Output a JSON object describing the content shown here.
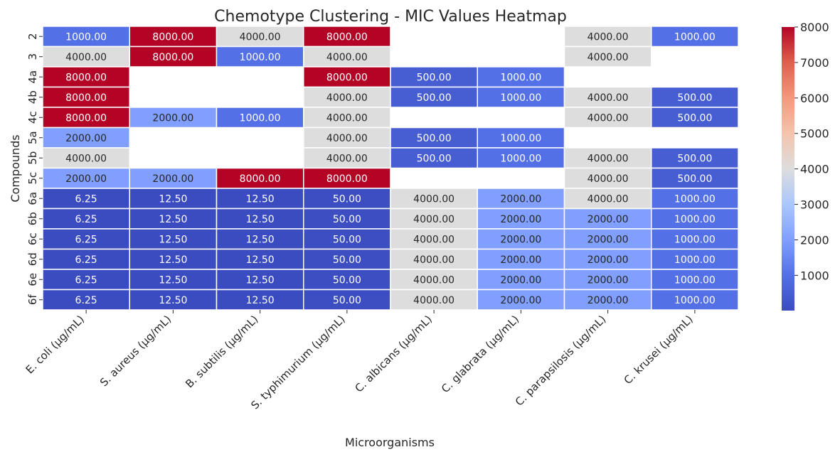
{
  "chart_data": {
    "type": "heatmap",
    "title": "Chemotype Clustering - MIC Values Heatmap",
    "xlabel": "Microorganisms",
    "ylabel": "Compounds",
    "columns": [
      "E. coli (µg/mL)",
      "S. aureus (µg/mL)",
      "B. subtilis (µg/mL)",
      "S. typhimurium (µg/mL)",
      "C. albicans (µg/mL)",
      "C. glabrata (µg/mL)",
      "C. parapsilosis (µg/mL)",
      "C. krusei (µg/mL)"
    ],
    "rows": [
      "2",
      "3",
      "4a",
      "4b",
      "4c",
      "5a",
      "5b",
      "5c",
      "6a",
      "6b",
      "6c",
      "6d",
      "6e",
      "6f"
    ],
    "values": [
      [
        1000,
        8000,
        4000,
        8000,
        null,
        null,
        4000,
        1000
      ],
      [
        4000,
        8000,
        1000,
        4000,
        null,
        null,
        4000,
        null
      ],
      [
        8000,
        null,
        null,
        8000,
        500,
        1000,
        null,
        null
      ],
      [
        8000,
        null,
        null,
        4000,
        500,
        1000,
        4000,
        500
      ],
      [
        8000,
        2000,
        1000,
        4000,
        null,
        null,
        4000,
        500
      ],
      [
        2000,
        null,
        null,
        4000,
        500,
        1000,
        null,
        null
      ],
      [
        4000,
        null,
        null,
        4000,
        500,
        1000,
        4000,
        500
      ],
      [
        2000,
        2000,
        8000,
        8000,
        null,
        null,
        4000,
        500
      ],
      [
        6.25,
        12.5,
        12.5,
        50,
        4000,
        2000,
        4000,
        1000
      ],
      [
        6.25,
        12.5,
        12.5,
        50,
        4000,
        2000,
        2000,
        1000
      ],
      [
        6.25,
        12.5,
        12.5,
        50,
        4000,
        2000,
        2000,
        1000
      ],
      [
        6.25,
        12.5,
        12.5,
        50,
        4000,
        2000,
        2000,
        1000
      ],
      [
        6.25,
        12.5,
        12.5,
        50,
        4000,
        2000,
        2000,
        1000
      ],
      [
        6.25,
        12.5,
        12.5,
        50,
        4000,
        2000,
        2000,
        1000
      ]
    ],
    "value_format": "fixed-2",
    "colormap": "coolwarm",
    "vmin": 6.25,
    "vmax": 8000,
    "colorbar_ticks": [
      1000,
      2000,
      3000,
      4000,
      5000,
      6000,
      7000,
      8000
    ],
    "missing_cells": "blank",
    "grid": false,
    "cell_border_color": "#ffffff"
  }
}
